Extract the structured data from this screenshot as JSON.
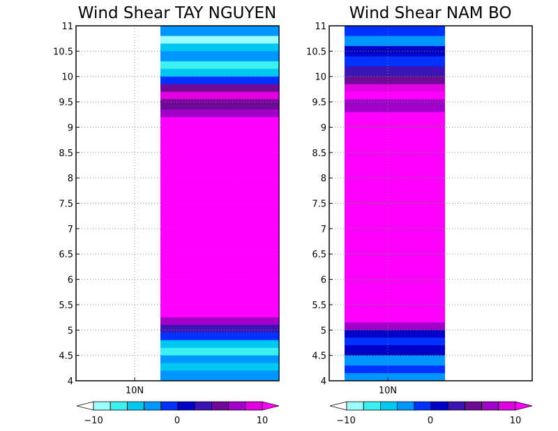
{
  "colors": {
    "background": "#ffffff",
    "axis": "#000000",
    "grid": "#8a8a8a",
    "scale": [
      "#ffffff",
      "#9cffff",
      "#3cf0f0",
      "#00c8f0",
      "#0096ff",
      "#0032ff",
      "#0000c8",
      "#3c14b4",
      "#6e0a96",
      "#a000c8",
      "#e100e1",
      "#ff00ff"
    ]
  },
  "chart_data": [
    {
      "type": "heatmap",
      "title": "Wind Shear TAY NGUYEN",
      "xlabel": "",
      "ylabel": "",
      "ylim": [
        4,
        11
      ],
      "yticks": [
        "4",
        "4.5",
        "5",
        "5.5",
        "6",
        "6.5",
        "7",
        "7.5",
        "8",
        "8.5",
        "9",
        "9.5",
        "10",
        "10.5",
        "11"
      ],
      "xtick_labels": [
        "10N"
      ],
      "grid": true,
      "data_column": "right part of panel (no data on left)",
      "profile": [
        {
          "y0": 11.0,
          "y1": 10.8,
          "value": -4
        },
        {
          "y0": 10.8,
          "y1": 10.65,
          "value": -9
        },
        {
          "y0": 10.65,
          "y1": 10.5,
          "value": -6
        },
        {
          "y0": 10.5,
          "y1": 10.3,
          "value": -3
        },
        {
          "y0": 10.3,
          "y1": 10.15,
          "value": -8
        },
        {
          "y0": 10.15,
          "y1": 10.0,
          "value": -5
        },
        {
          "y0": 10.0,
          "y1": 9.85,
          "value": -2
        },
        {
          "y0": 9.85,
          "y1": 9.7,
          "value": 5
        },
        {
          "y0": 9.7,
          "y1": 9.55,
          "value": 8
        },
        {
          "y0": 9.55,
          "y1": 9.35,
          "value": 4
        },
        {
          "y0": 9.35,
          "y1": 9.2,
          "value": 7
        },
        {
          "y0": 9.2,
          "y1": 5.25,
          "value": 10
        },
        {
          "y0": 5.25,
          "y1": 5.1,
          "value": 7
        },
        {
          "y0": 5.1,
          "y1": 4.95,
          "value": 2
        },
        {
          "y0": 4.95,
          "y1": 4.8,
          "value": -2
        },
        {
          "y0": 4.8,
          "y1": 4.65,
          "value": -6
        },
        {
          "y0": 4.65,
          "y1": 4.5,
          "value": -8
        },
        {
          "y0": 4.5,
          "y1": 4.35,
          "value": -4
        },
        {
          "y0": 4.35,
          "y1": 4.2,
          "value": -6
        },
        {
          "y0": 4.2,
          "y1": 4.0,
          "value": -3
        }
      ]
    },
    {
      "type": "heatmap",
      "title": "Wind Shear NAM BO",
      "xlabel": "",
      "ylabel": "",
      "ylim": [
        4,
        11
      ],
      "yticks": [
        "4",
        "4.5",
        "5",
        "5.5",
        "6",
        "6.5",
        "7",
        "7.5",
        "8",
        "8.5",
        "9",
        "9.5",
        "10",
        "10.5",
        "11"
      ],
      "xtick_labels": [
        "10N"
      ],
      "grid": true,
      "data_column": "left-center part of panel",
      "profile": [
        {
          "y0": 11.0,
          "y1": 10.8,
          "value": -2
        },
        {
          "y0": 10.8,
          "y1": 10.6,
          "value": -3
        },
        {
          "y0": 10.6,
          "y1": 10.4,
          "value": 0
        },
        {
          "y0": 10.4,
          "y1": 10.2,
          "value": -2
        },
        {
          "y0": 10.2,
          "y1": 10.0,
          "value": 2
        },
        {
          "y0": 10.0,
          "y1": 9.85,
          "value": 4
        },
        {
          "y0": 9.85,
          "y1": 9.7,
          "value": 9
        },
        {
          "y0": 9.7,
          "y1": 9.55,
          "value": 10
        },
        {
          "y0": 9.55,
          "y1": 9.3,
          "value": 7
        },
        {
          "y0": 9.3,
          "y1": 5.15,
          "value": 10
        },
        {
          "y0": 5.15,
          "y1": 5.0,
          "value": 6
        },
        {
          "y0": 5.0,
          "y1": 4.85,
          "value": 1
        },
        {
          "y0": 4.85,
          "y1": 4.7,
          "value": -2
        },
        {
          "y0": 4.7,
          "y1": 4.5,
          "value": 0
        },
        {
          "y0": 4.5,
          "y1": 4.3,
          "value": -3
        },
        {
          "y0": 4.3,
          "y1": 4.15,
          "value": -1
        },
        {
          "y0": 4.15,
          "y1": 4.0,
          "value": -4
        }
      ]
    }
  ],
  "colorbar": {
    "min": -10,
    "max": 10,
    "labels": [
      "−10",
      "0",
      "10"
    ],
    "levels": [
      -10,
      -8,
      -6,
      -4,
      -2,
      0,
      2,
      4,
      6,
      8,
      10
    ]
  }
}
